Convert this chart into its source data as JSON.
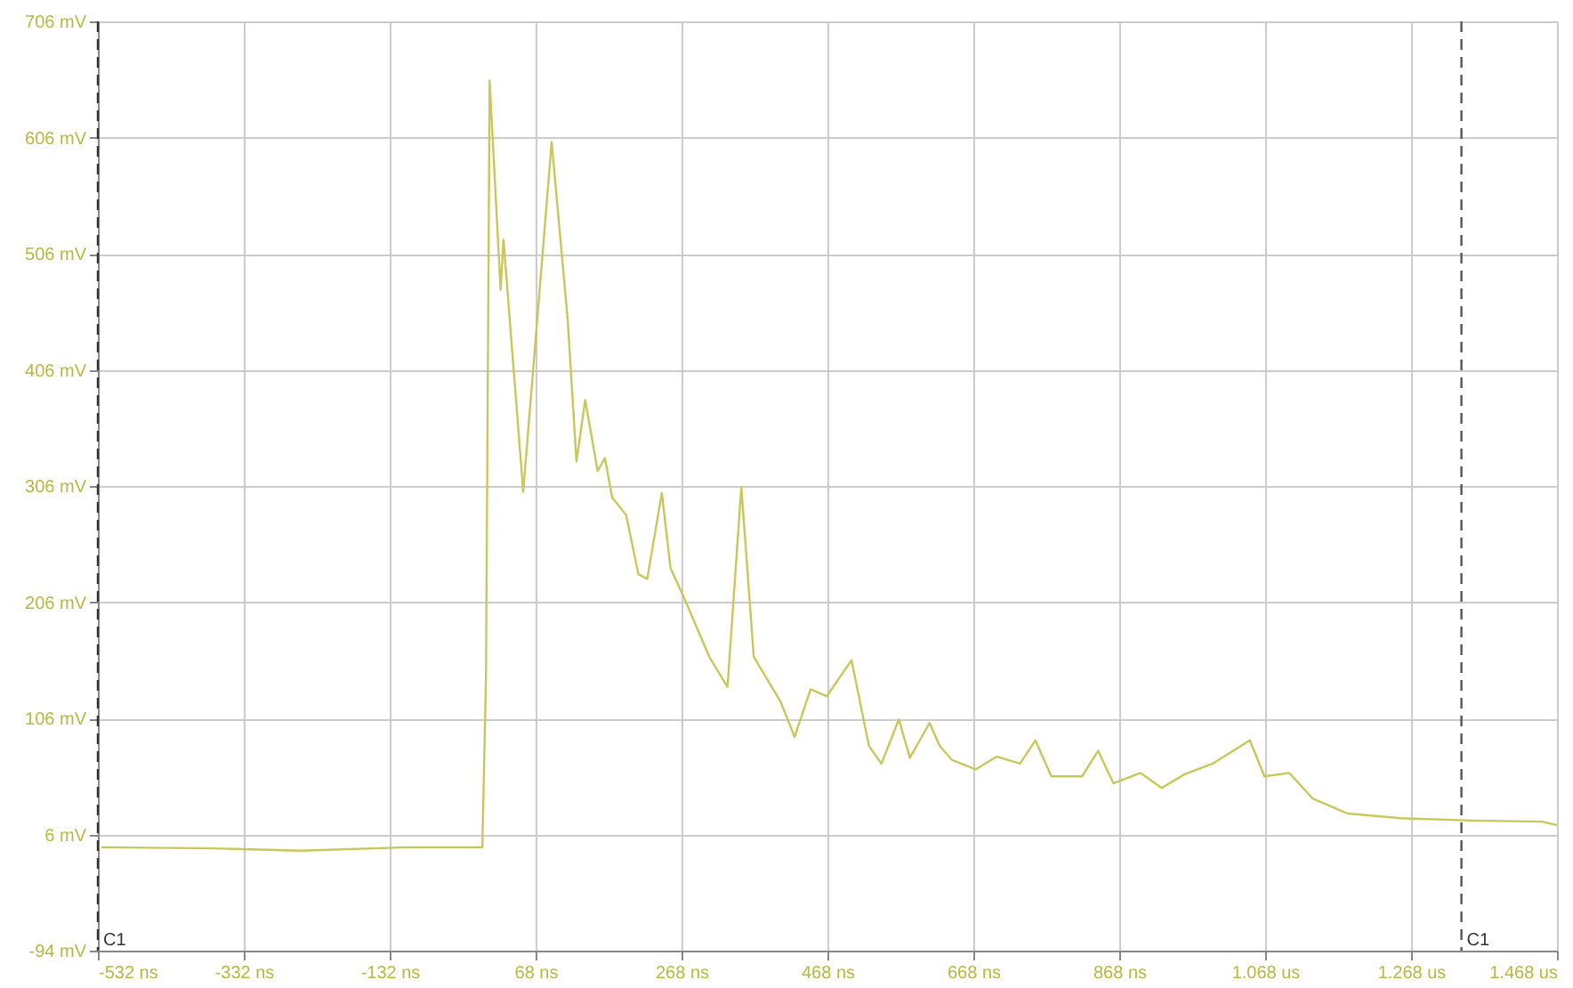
{
  "chart_data": {
    "type": "line",
    "x": [
      -527,
      -374,
      -253,
      -107,
      -5,
      0,
      5,
      20,
      24,
      51,
      90,
      112,
      124,
      136,
      153,
      163,
      173,
      192,
      209,
      221,
      241,
      253,
      270,
      306,
      331,
      350,
      367,
      404,
      423,
      445,
      467,
      501,
      525,
      542,
      566,
      581,
      608,
      622,
      639,
      671,
      700,
      732,
      753,
      775,
      817,
      839,
      860,
      897,
      926,
      958,
      996,
      1047,
      1067,
      1101,
      1133,
      1181,
      1254,
      1351,
      1448,
      1468
    ],
    "series": [
      {
        "color": "#c8c85a",
        "values": [
          -5,
          -6,
          -8,
          -5,
          -5,
          143,
          655,
          475,
          518,
          301,
          602,
          449,
          327,
          380,
          319,
          330,
          296,
          281,
          230,
          226,
          300,
          235,
          212,
          159,
          133,
          305,
          159,
          120,
          90,
          131,
          125,
          156,
          82,
          67,
          105,
          72,
          102,
          82,
          70,
          62,
          73,
          67,
          87,
          56,
          56,
          78,
          50,
          59,
          46,
          58,
          67,
          87,
          56,
          59,
          37,
          24,
          20,
          18,
          17,
          14
        ]
      }
    ],
    "xlim": [
      -532,
      1468
    ],
    "ylim": [
      -94,
      706
    ],
    "xticks": [
      {
        "value": -532,
        "label": "-532 ns"
      },
      {
        "value": -332,
        "label": "-332 ns"
      },
      {
        "value": -132,
        "label": "-132 ns"
      },
      {
        "value": 68,
        "label": "68 ns"
      },
      {
        "value": 268,
        "label": "268 ns"
      },
      {
        "value": 468,
        "label": "468 ns"
      },
      {
        "value": 668,
        "label": "668 ns"
      },
      {
        "value": 868,
        "label": "868 ns"
      },
      {
        "value": 1068,
        "label": "1.068 us"
      },
      {
        "value": 1268,
        "label": "1.268 us"
      },
      {
        "value": 1468,
        "label": "1.468 us"
      }
    ],
    "yticks": [
      {
        "value": -94,
        "label": "-94 mV"
      },
      {
        "value": 6,
        "label": "6 mV"
      },
      {
        "value": 106,
        "label": "106 mV"
      },
      {
        "value": 206,
        "label": "206 mV"
      },
      {
        "value": 306,
        "label": "306 mV"
      },
      {
        "value": 406,
        "label": "406 mV"
      },
      {
        "value": 506,
        "label": "506 mV"
      },
      {
        "value": 606,
        "label": "606 mV"
      },
      {
        "value": 706,
        "label": "706 mV"
      }
    ],
    "ref_lines": [
      {
        "axis": "x",
        "value": -532,
        "label": "C1",
        "color": "#333333",
        "line_style": "dashed"
      },
      {
        "axis": "x",
        "value": 1337,
        "label": "C1",
        "color": "#555555",
        "line_style": "dashed"
      }
    ],
    "grid": true,
    "marker": "none",
    "line_style": "solid"
  }
}
